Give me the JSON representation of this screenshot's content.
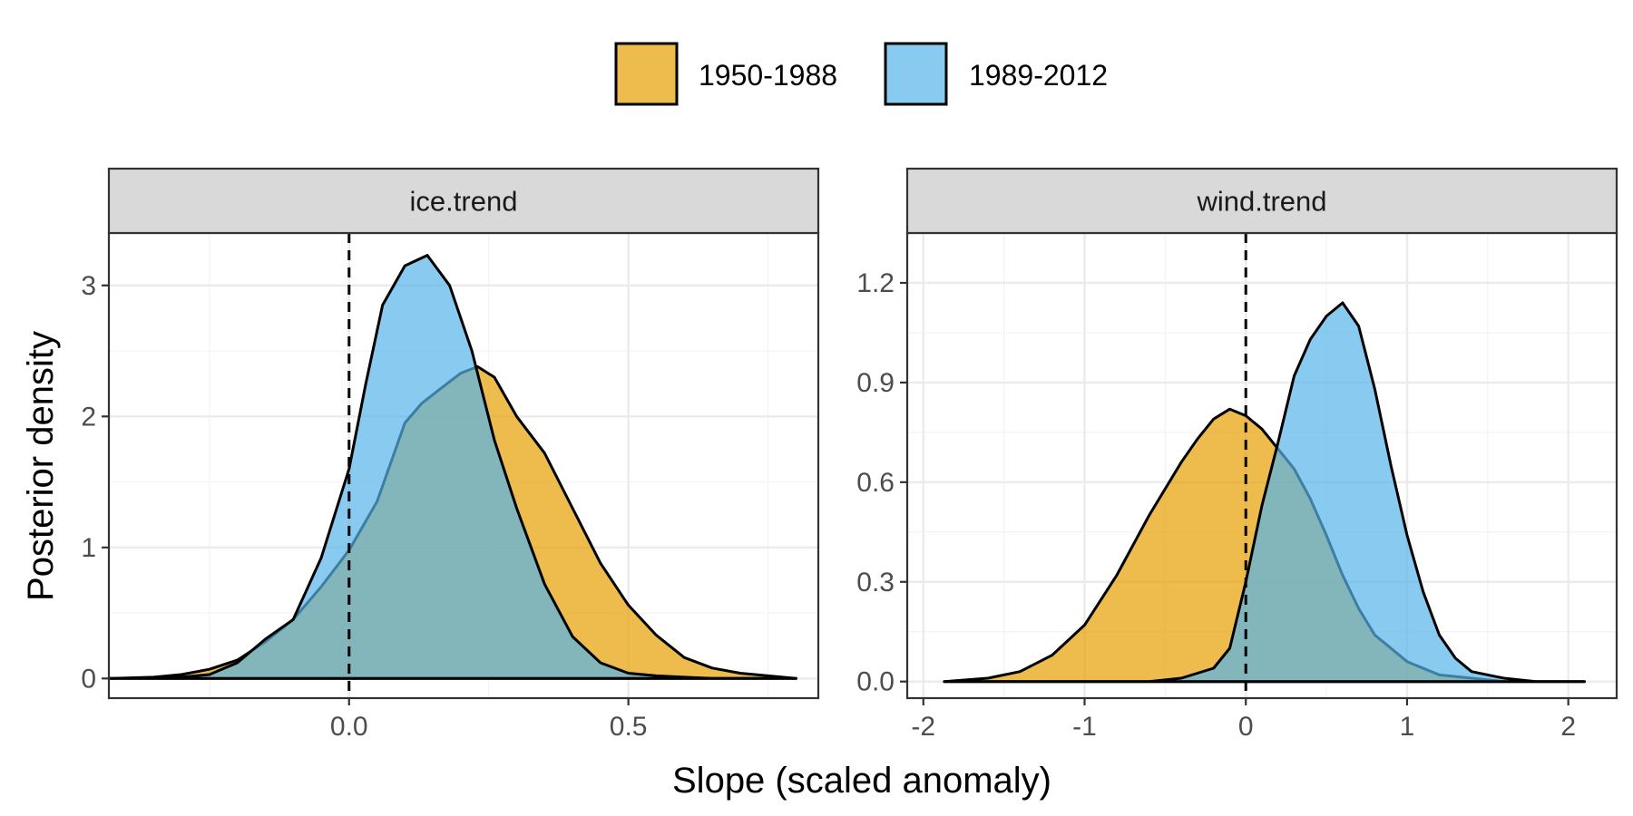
{
  "chart_data": {
    "type": "area",
    "legend": {
      "position": "top",
      "entries": [
        {
          "label": "1950-1988",
          "color": "#E69F00"
        },
        {
          "label": "1989-2012",
          "color": "#56B4E9"
        }
      ]
    },
    "xlabel": "Slope (scaled anomaly)",
    "ylabel": "Posterior density",
    "fill_opacity": 0.7,
    "grid": true,
    "facets": [
      {
        "strip": "ice.trend",
        "xlim": [
          -0.43,
          0.84
        ],
        "ylim": [
          -0.15,
          3.4
        ],
        "xticks": [
          0.0,
          0.5
        ],
        "xtick_labels": [
          "0.0",
          "0.5"
        ],
        "yticks": [
          0,
          1,
          2,
          3
        ],
        "ytick_labels": [
          "0",
          "1",
          "2",
          "3"
        ],
        "vline": 0,
        "series": [
          {
            "name": "1950-1988",
            "color": "#E69F00",
            "x": [
              -0.43,
              -0.35,
              -0.3,
              -0.25,
              -0.2,
              -0.15,
              -0.1,
              -0.05,
              0.0,
              0.05,
              0.1,
              0.13,
              0.16,
              0.2,
              0.23,
              0.26,
              0.3,
              0.35,
              0.4,
              0.45,
              0.5,
              0.55,
              0.6,
              0.65,
              0.7,
              0.75,
              0.8
            ],
            "values": [
              0.0,
              0.01,
              0.03,
              0.07,
              0.14,
              0.28,
              0.45,
              0.7,
              0.98,
              1.35,
              1.95,
              2.1,
              2.2,
              2.33,
              2.38,
              2.3,
              2.0,
              1.72,
              1.3,
              0.88,
              0.56,
              0.33,
              0.16,
              0.08,
              0.04,
              0.02,
              0.0
            ]
          },
          {
            "name": "1989-2012",
            "color": "#56B4E9",
            "x": [
              -0.43,
              -0.35,
              -0.3,
              -0.25,
              -0.2,
              -0.15,
              -0.1,
              -0.05,
              0.0,
              0.03,
              0.06,
              0.1,
              0.14,
              0.18,
              0.22,
              0.26,
              0.3,
              0.35,
              0.4,
              0.45,
              0.5,
              0.55,
              0.6,
              0.65,
              0.7,
              0.75,
              0.8
            ],
            "values": [
              0.0,
              0.0,
              0.01,
              0.03,
              0.12,
              0.3,
              0.45,
              0.92,
              1.6,
              2.25,
              2.85,
              3.15,
              3.23,
              3.0,
              2.5,
              1.82,
              1.3,
              0.72,
              0.32,
              0.12,
              0.04,
              0.02,
              0.01,
              0.0,
              0.0,
              0.0,
              0.0
            ]
          }
        ]
      },
      {
        "strip": "wind.trend",
        "xlim": [
          -2.1,
          2.3
        ],
        "ylim": [
          -0.05,
          1.35
        ],
        "xticks": [
          -2,
          -1,
          0,
          1,
          2
        ],
        "xtick_labels": [
          "-2",
          "-1",
          "0",
          "1",
          "2"
        ],
        "yticks": [
          0.0,
          0.3,
          0.6,
          0.9,
          1.2
        ],
        "ytick_labels": [
          "0.0",
          "0.3",
          "0.6",
          "0.9",
          "1.2"
        ],
        "vline": 0,
        "series": [
          {
            "name": "1950-1988",
            "color": "#E69F00",
            "x": [
              -1.87,
              -1.6,
              -1.4,
              -1.2,
              -1.0,
              -0.8,
              -0.6,
              -0.4,
              -0.3,
              -0.2,
              -0.1,
              0.0,
              0.1,
              0.2,
              0.3,
              0.4,
              0.5,
              0.6,
              0.7,
              0.8,
              1.0,
              1.2,
              1.4,
              1.6,
              1.8,
              2.1
            ],
            "values": [
              0.0,
              0.01,
              0.03,
              0.08,
              0.17,
              0.32,
              0.5,
              0.66,
              0.73,
              0.79,
              0.82,
              0.8,
              0.76,
              0.7,
              0.64,
              0.55,
              0.44,
              0.32,
              0.22,
              0.14,
              0.06,
              0.02,
              0.01,
              0.0,
              0.0,
              0.0
            ]
          },
          {
            "name": "1989-2012",
            "color": "#56B4E9",
            "x": [
              -1.87,
              -1.0,
              -0.6,
              -0.4,
              -0.2,
              -0.1,
              0.0,
              0.1,
              0.2,
              0.3,
              0.4,
              0.5,
              0.6,
              0.7,
              0.8,
              0.9,
              1.0,
              1.1,
              1.2,
              1.3,
              1.4,
              1.6,
              1.8,
              2.1
            ],
            "values": [
              0.0,
              0.0,
              0.0,
              0.01,
              0.04,
              0.1,
              0.3,
              0.53,
              0.72,
              0.92,
              1.03,
              1.1,
              1.14,
              1.07,
              0.88,
              0.65,
              0.44,
              0.27,
              0.14,
              0.07,
              0.03,
              0.01,
              0.0,
              0.0
            ]
          }
        ]
      }
    ]
  }
}
